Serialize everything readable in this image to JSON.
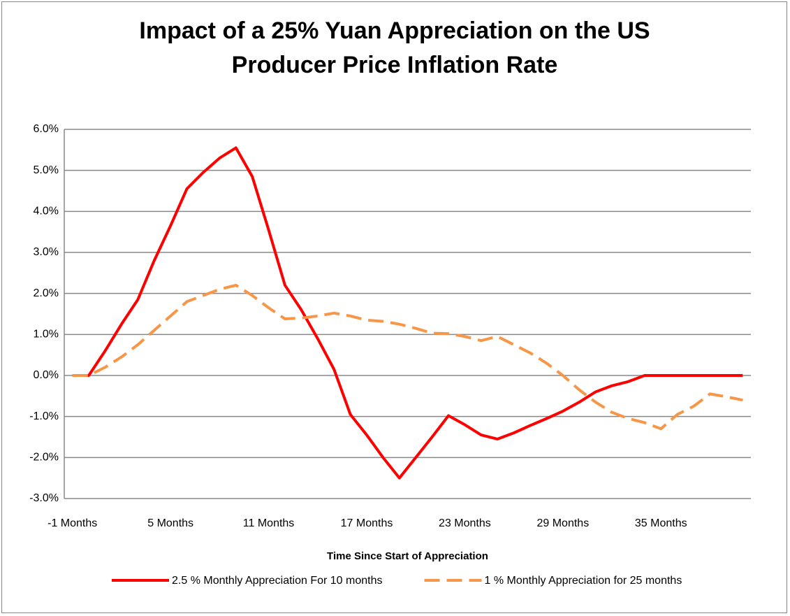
{
  "chart_data": {
    "type": "line",
    "title": "Impact of a 25% Yuan Appreciation on the US Producer Price Inflation Rate",
    "x_label": "Time Since Start of Appreciation",
    "categories": [
      "-1 Months",
      null,
      null,
      null,
      null,
      null,
      "5 Months",
      null,
      null,
      null,
      null,
      null,
      "11 Months",
      null,
      null,
      null,
      null,
      null,
      "17 Months",
      null,
      null,
      null,
      null,
      null,
      "23 Months",
      null,
      null,
      null,
      null,
      null,
      "29 Months",
      null,
      null,
      null,
      null,
      null,
      "35 Months",
      null,
      null,
      null,
      null,
      null
    ],
    "series": [
      {
        "name": "2.5 % Monthly Appreciation For 10 months",
        "color": "#ff0000",
        "dash": false,
        "values": [
          0,
          0,
          0.6,
          1.25,
          1.85,
          2.8,
          3.65,
          4.55,
          4.95,
          5.3,
          5.55,
          4.85,
          3.55,
          2.2,
          1.6,
          0.9,
          0.15,
          -0.95,
          -1.45,
          -2.0,
          -2.5,
          -2.0,
          -1.5,
          -0.98,
          -1.2,
          -1.45,
          -1.55,
          -1.4,
          -1.22,
          -1.05,
          -0.87,
          -0.65,
          -0.4,
          -0.25,
          -0.15,
          0,
          0,
          0,
          0,
          0,
          0,
          0
        ]
      },
      {
        "name": "1 % Monthly Appreciation for 25 months",
        "color": "#f79646",
        "dash": true,
        "values": [
          0,
          0,
          0.2,
          0.45,
          0.75,
          1.1,
          1.45,
          1.8,
          1.95,
          2.1,
          2.2,
          1.95,
          1.65,
          1.38,
          1.4,
          1.45,
          1.52,
          1.45,
          1.35,
          1.32,
          1.25,
          1.15,
          1.03,
          1.02,
          0.95,
          0.85,
          0.95,
          0.75,
          0.55,
          0.3,
          0,
          -0.35,
          -0.65,
          -0.9,
          -1.05,
          -1.15,
          -1.3,
          -0.95,
          -0.75,
          -0.45,
          -0.52,
          -0.6
        ]
      }
    ],
    "ylim": [
      -3,
      6
    ],
    "yticks": [
      {
        "value": -3,
        "label": "-3.0%"
      },
      {
        "value": -2,
        "label": "-2.0%"
      },
      {
        "value": -1,
        "label": "-1.0%"
      },
      {
        "value": 0,
        "label": "0.0%"
      },
      {
        "value": 1,
        "label": "1.0%"
      },
      {
        "value": 2,
        "label": "2.0%"
      },
      {
        "value": 3,
        "label": "3.0%"
      },
      {
        "value": 4,
        "label": "4.0%"
      },
      {
        "value": 5,
        "label": "5.0%"
      },
      {
        "value": 6,
        "label": "6.0%"
      }
    ],
    "grid": true,
    "legend": "bottom"
  }
}
